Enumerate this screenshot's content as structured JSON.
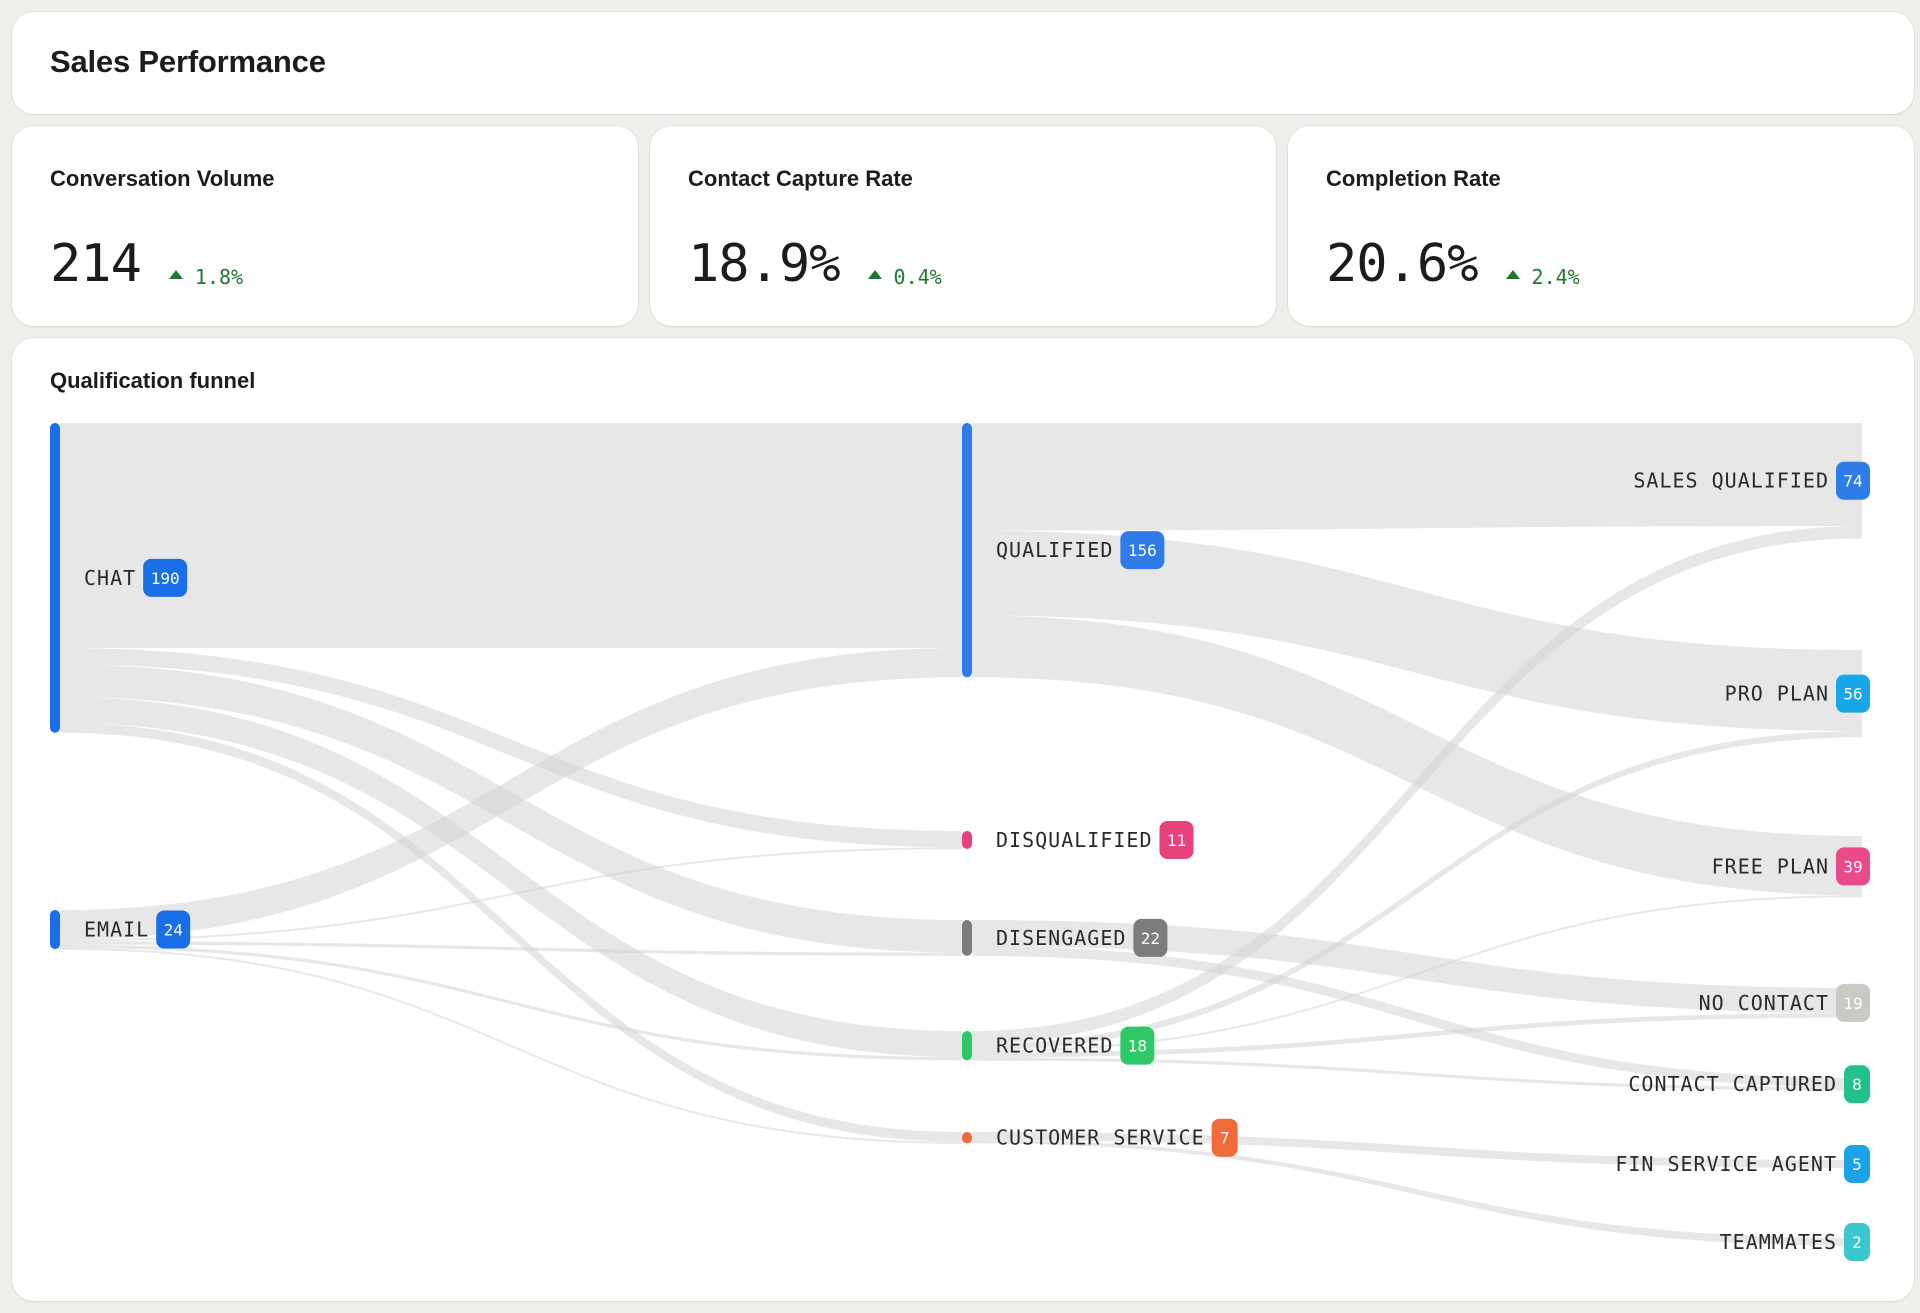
{
  "header": {
    "title": "Sales Performance"
  },
  "kpis": [
    {
      "label": "Conversation Volume",
      "value": "214",
      "delta": "1.8%",
      "trend": "up"
    },
    {
      "label": "Contact Capture Rate",
      "value": "18.9%",
      "delta": "0.4%",
      "trend": "up"
    },
    {
      "label": "Completion Rate",
      "value": "20.6%",
      "delta": "2.4%",
      "trend": "up"
    }
  ],
  "colors": {
    "delta_up": "#1c7a2e",
    "flow": "#d4d4d4",
    "node_blue": "#2f7be8"
  },
  "funnel": {
    "title": "Qualification funnel"
  },
  "chart_data": {
    "type": "sankey",
    "title": "Qualification funnel",
    "nodes": [
      {
        "id": "chat",
        "label": "CHAT",
        "value": 190,
        "column": 0,
        "color": "#1a6fe6"
      },
      {
        "id": "email",
        "label": "EMAIL",
        "value": 24,
        "column": 0,
        "color": "#1a6fe6"
      },
      {
        "id": "qualified",
        "label": "QUALIFIED",
        "value": 156,
        "column": 1,
        "color": "#2f7be8"
      },
      {
        "id": "disqualified",
        "label": "DISQUALIFIED",
        "value": 11,
        "column": 1,
        "color": "#e8427c"
      },
      {
        "id": "disengaged",
        "label": "DISENGAGED",
        "value": 22,
        "column": 1,
        "color": "#7c7c7c"
      },
      {
        "id": "recovered",
        "label": "RECOVERED",
        "value": 18,
        "column": 1,
        "color": "#2ec866"
      },
      {
        "id": "customer_service",
        "label": "CUSTOMER SERVICE",
        "value": 7,
        "column": 1,
        "color": "#f06a3a"
      },
      {
        "id": "sales_qualified",
        "label": "SALES QUALIFIED",
        "value": 74,
        "column": 2,
        "color": "#2f7be8"
      },
      {
        "id": "pro_plan",
        "label": "PRO PLAN",
        "value": 56,
        "column": 2,
        "color": "#18a6e8"
      },
      {
        "id": "free_plan",
        "label": "FREE PLAN",
        "value": 39,
        "column": 2,
        "color": "#ea4a8a"
      },
      {
        "id": "no_contact",
        "label": "NO CONTACT",
        "value": 19,
        "column": 2,
        "color": "#cacac4"
      },
      {
        "id": "contact_captured",
        "label": "CONTACT CAPTURED",
        "value": 8,
        "column": 2,
        "color": "#22c08a"
      },
      {
        "id": "fin_service_agent",
        "label": "FIN SERVICE AGENT",
        "value": 5,
        "column": 2,
        "color": "#1aa3e6"
      },
      {
        "id": "teammates",
        "label": "TEAMMATES",
        "value": 2,
        "column": 2,
        "color": "#3cc6d0"
      }
    ],
    "links": [
      {
        "source": "chat",
        "target": "qualified",
        "value": 138
      },
      {
        "source": "chat",
        "target": "disqualified",
        "value": 10
      },
      {
        "source": "chat",
        "target": "disengaged",
        "value": 20
      },
      {
        "source": "chat",
        "target": "recovered",
        "value": 16
      },
      {
        "source": "chat",
        "target": "customer_service",
        "value": 6
      },
      {
        "source": "email",
        "target": "qualified",
        "value": 18
      },
      {
        "source": "email",
        "target": "disqualified",
        "value": 1
      },
      {
        "source": "email",
        "target": "disengaged",
        "value": 2
      },
      {
        "source": "email",
        "target": "recovered",
        "value": 2
      },
      {
        "source": "email",
        "target": "customer_service",
        "value": 1
      },
      {
        "source": "qualified",
        "target": "sales_qualified",
        "value": 66
      },
      {
        "source": "qualified",
        "target": "pro_plan",
        "value": 52
      },
      {
        "source": "qualified",
        "target": "free_plan",
        "value": 38
      },
      {
        "source": "disengaged",
        "target": "no_contact",
        "value": 16
      },
      {
        "source": "disengaged",
        "target": "contact_captured",
        "value": 6
      },
      {
        "source": "recovered",
        "target": "sales_qualified",
        "value": 8
      },
      {
        "source": "recovered",
        "target": "pro_plan",
        "value": 4
      },
      {
        "source": "recovered",
        "target": "free_plan",
        "value": 1
      },
      {
        "source": "recovered",
        "target": "no_contact",
        "value": 3
      },
      {
        "source": "recovered",
        "target": "contact_captured",
        "value": 2
      },
      {
        "source": "customer_service",
        "target": "fin_service_agent",
        "value": 5
      },
      {
        "source": "customer_service",
        "target": "teammates",
        "value": 2
      }
    ]
  }
}
